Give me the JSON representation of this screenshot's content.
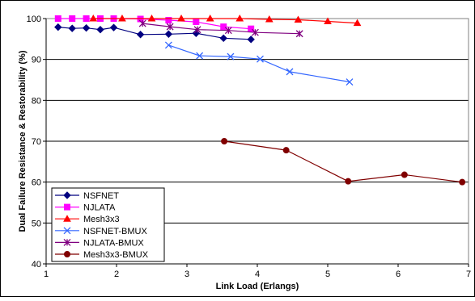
{
  "chart_data": {
    "type": "line",
    "title": "",
    "xlabel": "Link Load (Erlangs)",
    "ylabel": "Dual Failure Resistance & Restorability (%)",
    "xlim": [
      1,
      7
    ],
    "ylim": [
      40,
      100
    ],
    "xticks": [
      "1",
      "2",
      "3",
      "4",
      "5",
      "6",
      "7"
    ],
    "yticks": [
      "40",
      "50",
      "60",
      "70",
      "80",
      "90",
      "100"
    ],
    "grid": "horizontal",
    "legend_position": "bottom-left",
    "series": [
      {
        "name": "NSFNET",
        "color": "#000080",
        "marker": "diamond",
        "x": [
          1.17,
          1.37,
          1.57,
          1.77,
          1.96,
          2.34,
          2.74,
          3.13,
          3.52,
          3.91
        ],
        "y": [
          97.9,
          97.6,
          97.7,
          97.3,
          97.8,
          96.1,
          96.2,
          96.4,
          95.2,
          94.9
        ]
      },
      {
        "name": "NJLATA",
        "color": "#FF00FF",
        "marker": "square",
        "x": [
          1.17,
          1.37,
          1.57,
          1.77,
          1.96,
          2.34,
          2.74,
          3.13,
          3.52,
          3.91
        ],
        "y": [
          100.0,
          100.0,
          100.0,
          100.0,
          100.0,
          99.9,
          99.6,
          99.2,
          98.0,
          97.5
        ]
      },
      {
        "name": "Mesh3x3",
        "color": "#FF0000",
        "marker": "triangle",
        "x": [
          1.67,
          2.08,
          2.5,
          2.92,
          3.33,
          3.75,
          4.17,
          4.58,
          5.0,
          5.42
        ],
        "y": [
          100.0,
          100.0,
          100.0,
          100.0,
          100.0,
          100.0,
          99.8,
          99.7,
          99.3,
          98.9
        ]
      },
      {
        "name": "NSFNET-BMUX",
        "color": "#3366FF",
        "marker": "x",
        "x": [
          2.74,
          3.18,
          3.62,
          4.04,
          4.46,
          5.31
        ],
        "y": [
          93.5,
          90.9,
          90.7,
          90.1,
          87.0,
          84.5
        ]
      },
      {
        "name": "NJLATA-BMUX",
        "color": "#800080",
        "marker": "star",
        "x": [
          2.37,
          2.76,
          3.15,
          3.59,
          3.97,
          4.6
        ],
        "y": [
          98.8,
          98.0,
          97.3,
          97.1,
          96.6,
          96.3
        ]
      },
      {
        "name": "Mesh3x3-BMUX",
        "color": "#800000",
        "marker": "circle",
        "x": [
          3.53,
          4.41,
          5.29,
          6.09,
          6.91
        ],
        "y": [
          70.0,
          67.8,
          60.2,
          61.8,
          60.0
        ]
      }
    ]
  }
}
